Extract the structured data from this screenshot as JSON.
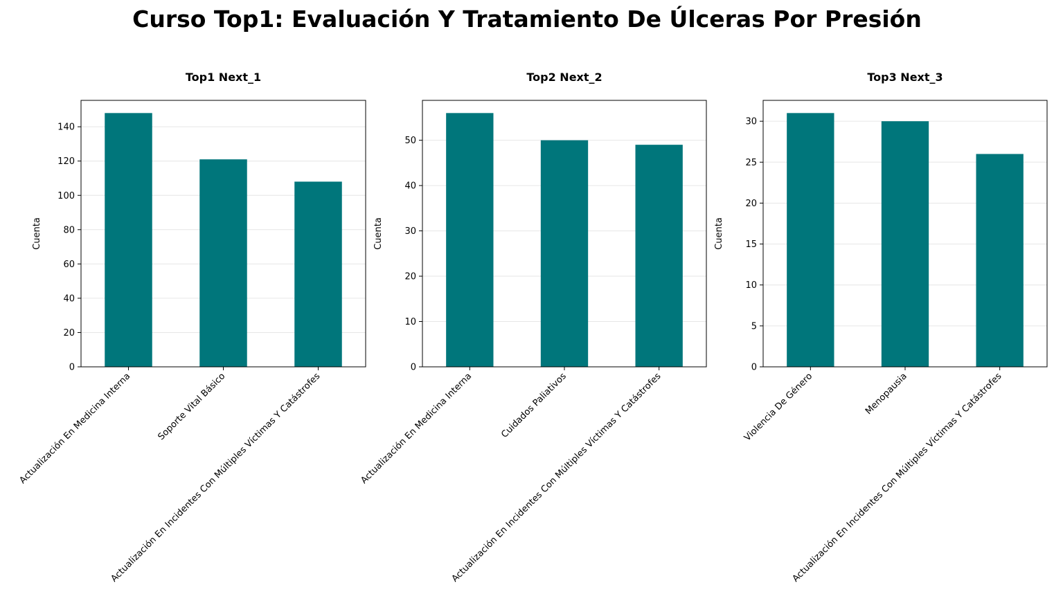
{
  "figure": {
    "title": "Curso Top1: Evaluación Y Tratamiento De Úlceras Por Presión",
    "bar_color": "#00767b",
    "grid_color": "#e6e6e6"
  },
  "chart_data": [
    {
      "type": "bar",
      "title": "Top1 Next_1",
      "ylabel": "Cuenta",
      "xlabel": "",
      "categories": [
        "Actualización En Medicina Interna",
        "Soporte Vital Básico",
        "Actualización En Incidentes Con Múltiples Víctimas Y Catástrofes"
      ],
      "values": [
        148,
        121,
        108
      ],
      "ylim": [
        0,
        155.4
      ],
      "yticks": [
        0,
        20,
        40,
        60,
        80,
        100,
        120,
        140
      ],
      "grid": "y"
    },
    {
      "type": "bar",
      "title": "Top2 Next_2",
      "ylabel": "Cuenta",
      "xlabel": "",
      "categories": [
        "Actualización En Medicina Interna",
        "Cuidados Paliativos",
        "Actualización En Incidentes Con Múltiples Víctimas Y Catástrofes"
      ],
      "values": [
        56,
        50,
        49
      ],
      "ylim": [
        0,
        58.8
      ],
      "yticks": [
        0,
        10,
        20,
        30,
        40,
        50
      ],
      "grid": "y"
    },
    {
      "type": "bar",
      "title": "Top3 Next_3",
      "ylabel": "Cuenta",
      "xlabel": "",
      "categories": [
        "Violencia De Género",
        "Menopausia",
        "Actualización En Incidentes Con Múltiples Víctimas Y Catástrofes"
      ],
      "values": [
        31,
        30,
        26
      ],
      "ylim": [
        0,
        32.55
      ],
      "yticks": [
        0,
        5,
        10,
        15,
        20,
        25,
        30
      ],
      "grid": "y"
    }
  ]
}
